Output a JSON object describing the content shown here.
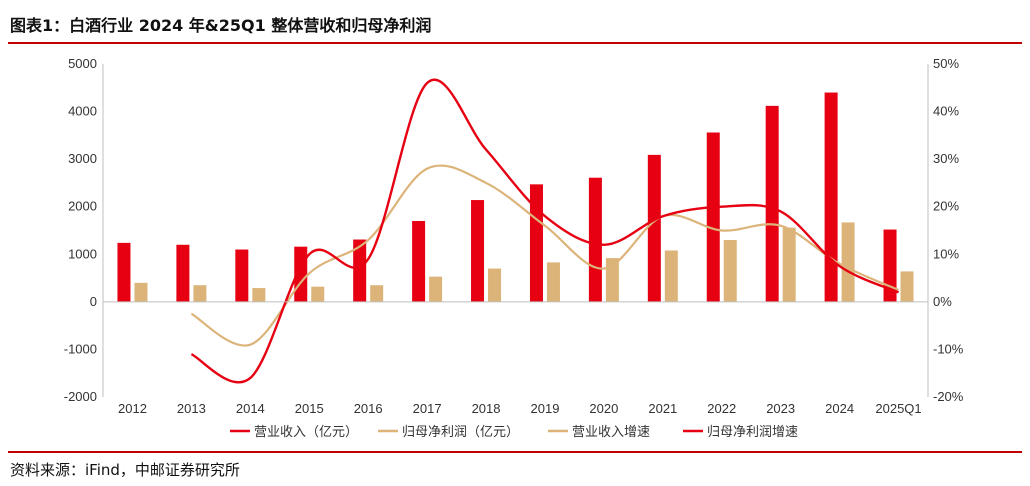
{
  "title": "图表1：白酒行业 2024 年&25Q1 整体营收和归母净利润",
  "source": "资料来源：iFind，中邮证券研究所",
  "colors": {
    "revenue": "#e60012",
    "profit": "#dcb47a",
    "rule": "#c00000"
  },
  "chart_data": {
    "type": "bar",
    "categories": [
      "2012",
      "2013",
      "2014",
      "2015",
      "2016",
      "2017",
      "2018",
      "2019",
      "2020",
      "2021",
      "2022",
      "2023",
      "2024",
      "2025Q1"
    ],
    "y_left": {
      "lim": [
        -2000,
        5000
      ],
      "ticks": [
        "5000",
        "4000",
        "3000",
        "2000",
        "1000",
        "0",
        "-1000",
        "-2000"
      ],
      "tick_values": [
        5000,
        4000,
        3000,
        2000,
        1000,
        0,
        -1000,
        -2000
      ]
    },
    "y_right": {
      "lim": [
        -20,
        50
      ],
      "ticks": [
        "50%",
        "40%",
        "30%",
        "20%",
        "10%",
        "0%",
        "-10%",
        "-20%"
      ],
      "tick_values": [
        50,
        40,
        30,
        20,
        10,
        0,
        -10,
        -20
      ]
    },
    "series": [
      {
        "name": "营业收入（亿元）",
        "kind": "bar",
        "axis": "left",
        "color": "#e60012",
        "values": [
          1240,
          1200,
          1100,
          1160,
          1310,
          1700,
          2140,
          2470,
          2610,
          3090,
          3560,
          4120,
          4400,
          1520
        ]
      },
      {
        "name": "归母净利润（亿元）",
        "kind": "bar",
        "axis": "left",
        "color": "#dcb47a",
        "values": [
          400,
          350,
          290,
          320,
          350,
          530,
          700,
          830,
          920,
          1080,
          1300,
          1560,
          1670,
          640
        ]
      },
      {
        "name": "营业收入增速",
        "kind": "line",
        "axis": "right",
        "color": "#dcb47a",
        "values": [
          null,
          -2.5,
          -9.0,
          6.0,
          13.0,
          28.0,
          25.0,
          16.0,
          7.0,
          18.0,
          15.0,
          16.0,
          8.0,
          2.5
        ]
      },
      {
        "name": "归母净利润增速",
        "kind": "line",
        "axis": "right",
        "color": "#e60012",
        "values": [
          null,
          -11.0,
          -16.0,
          10.0,
          9.0,
          46.0,
          32.0,
          18.0,
          12.0,
          18.0,
          20.0,
          19.0,
          7.5,
          2.0
        ]
      }
    ],
    "legend": [
      "营业收入（亿元）",
      "归母净利润（亿元）",
      "营业收入增速",
      "归母净利润增速"
    ],
    "legend_position": "bottom",
    "grid": false
  }
}
